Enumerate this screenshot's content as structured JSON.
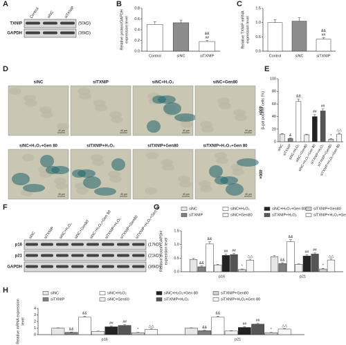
{
  "chart_data": [
    {
      "type": "bar",
      "panel": "B",
      "ylabel": [
        "Relative protein/GAPDH",
        "expression level"
      ],
      "categories": [
        "Control",
        "siNC",
        "siTXNIP"
      ],
      "values": [
        0.5,
        0.53,
        0.18
      ],
      "errors": [
        0.05,
        0.05,
        0.02
      ],
      "annotations": [
        null,
        null,
        [
          "&&",
          "##"
        ]
      ],
      "colors": [
        "#ffffff",
        "#8c8c8c",
        "#ffffff"
      ],
      "ylim": [
        0,
        0.8
      ],
      "yticks": [
        {
          "value": 0,
          "label": "0.0"
        },
        {
          "value": 0.2,
          "label": "0.2"
        },
        {
          "value": 0.4,
          "label": "0.4"
        },
        {
          "value": 0.6,
          "label": "0.6"
        },
        {
          "value": 0.8,
          "label": "0.8"
        }
      ]
    },
    {
      "type": "bar",
      "panel": "C",
      "ylabel": [
        "Relative TXNIP mRNA",
        "expression level"
      ],
      "categories": [
        "Control",
        "siNC",
        "siTXNIP"
      ],
      "values": [
        1.0,
        1.05,
        0.42
      ],
      "errors": [
        0.1,
        0.12,
        0.05
      ],
      "annotations": [
        null,
        null,
        [
          "&&",
          "##"
        ]
      ],
      "colors": [
        "#ffffff",
        "#8c8c8c",
        "#ffffff"
      ],
      "ylim": [
        0,
        1.5
      ],
      "yticks": [
        {
          "value": 0,
          "label": "0.0"
        },
        {
          "value": 0.5,
          "label": "0.5"
        },
        {
          "value": 1,
          "label": "1.0"
        },
        {
          "value": 1.5,
          "label": "1.5"
        }
      ]
    },
    {
      "type": "bar",
      "panel": "E",
      "ylabel": [
        "β-gal positive cells (%)"
      ],
      "categories": [
        "siNC",
        "siTXNIP",
        "siNC+H₂O₂",
        "siNC+Gen80",
        "siNC+H₂O₂+Gen 80",
        "siTXNIP+H₂O₂",
        "siTXNIP+Gen80",
        "siTXNIP+H₂O₂+Gen 80"
      ],
      "values": [
        12,
        5,
        64,
        11,
        40,
        49,
        4,
        12
      ],
      "errors": [
        1,
        1,
        4,
        1,
        3,
        3,
        1,
        2
      ],
      "annotations": [
        null,
        [
          "&"
        ],
        [
          "&&"
        ],
        null,
        [
          "##"
        ],
        [
          "##"
        ],
        [
          "*"
        ],
        [
          "△△"
        ]
      ],
      "colors": [
        "#e6e6e6",
        "#7f7f7f",
        "#ffffff",
        "#f0f0f0",
        "#222222",
        "#555555",
        "#d0d0d0",
        "#f7f7f7"
      ],
      "ylim": [
        0,
        100
      ],
      "yticks": [
        0,
        20,
        40,
        60,
        80,
        100
      ]
    },
    {
      "type": "grouped-bar",
      "panel": "G",
      "ylabel": [
        "Relative protein/GAPDH",
        "expression level"
      ],
      "categories": [
        "p16",
        "p21"
      ],
      "ylim": [
        0,
        1.5
      ],
      "yticks": [
        {
          "value": 0,
          "label": "0.0"
        },
        {
          "value": 0.5,
          "label": "0.5"
        },
        {
          "value": 1,
          "label": "1.0"
        },
        {
          "value": 1.5,
          "label": "1.5"
        }
      ],
      "series": [
        {
          "name": "siNC",
          "color": "#e6e6e6",
          "values": [
            0.45,
            0.55
          ],
          "errors": [
            0.04,
            0.04
          ],
          "annotations": [
            null,
            null
          ]
        },
        {
          "name": "siTXNIP",
          "color": "#7f7f7f",
          "values": [
            0.18,
            0.3
          ],
          "errors": [
            0.03,
            0.03
          ],
          "annotations": [
            "&&",
            "&&"
          ]
        },
        {
          "name": "siNC+H₂O₂",
          "color": "#ffffff",
          "values": [
            1.02,
            1.1
          ],
          "errors": [
            0.08,
            0.08
          ],
          "annotations": [
            "&&",
            "&&"
          ]
        },
        {
          "name": "siNC+Gen80",
          "color": "#f0f0f0",
          "values": [
            0.25,
            0.27
          ],
          "errors": [
            0.02,
            0.02
          ],
          "annotations": [
            null,
            null
          ]
        },
        {
          "name": "siNC+H₂O₂+Gen 80",
          "color": "#222222",
          "values": [
            0.6,
            0.58
          ],
          "errors": [
            0.04,
            0.04
          ],
          "annotations": [
            "##",
            "##"
          ]
        },
        {
          "name": "siTXNIP+H₂O₂",
          "color": "#555555",
          "values": [
            0.63,
            0.65
          ],
          "errors": [
            0.04,
            0.04
          ],
          "annotations": [
            "##",
            "##"
          ]
        },
        {
          "name": "siTXNIP+Gen80",
          "color": "#d0d0d0",
          "values": [
            0.08,
            0.1
          ],
          "errors": [
            0.02,
            0.02
          ],
          "annotations": [
            "*",
            "*"
          ]
        },
        {
          "name": "siTXNIP+H₂O₂+Gen 80",
          "color": "#f7f7f7",
          "values": [
            0.42,
            0.43
          ],
          "errors": [
            0.04,
            0.04
          ],
          "annotations": [
            "△△",
            "△△"
          ]
        }
      ]
    },
    {
      "type": "grouped-bar",
      "panel": "H",
      "ylabel": [
        "Relative mRNA expression",
        "level"
      ],
      "categories": [
        "p16",
        "p21"
      ],
      "ylim": [
        0,
        4
      ],
      "yticks": [
        0,
        1,
        2,
        3,
        4
      ],
      "series": [
        {
          "name": "siNC",
          "color": "#e6e6e6",
          "values": [
            1.0,
            1.0
          ],
          "errors": [
            0.05,
            0.05
          ],
          "annotations": [
            null,
            null
          ]
        },
        {
          "name": "siTXNIP",
          "color": "#7f7f7f",
          "values": [
            0.35,
            0.6
          ],
          "errors": [
            0.05,
            0.06
          ],
          "annotations": [
            "&&",
            "&&"
          ]
        },
        {
          "name": "siNC+H₂O₂",
          "color": "#ffffff",
          "values": [
            2.65,
            2.65
          ],
          "errors": [
            0.15,
            0.15
          ],
          "annotations": [
            "&&",
            "&&"
          ]
        },
        {
          "name": "siNC+Gen60",
          "color": "#f0f0f0",
          "values": [
            0.5,
            0.55
          ],
          "errors": [
            0.04,
            0.04
          ],
          "annotations": [
            null,
            null
          ]
        },
        {
          "name": "siNC+H₂O₂+Gen 80",
          "color": "#222222",
          "values": [
            1.2,
            1.1
          ],
          "errors": [
            0.1,
            0.1
          ],
          "annotations": [
            "##",
            "##"
          ]
        },
        {
          "name": "siTXNIP+H₂O₂",
          "color": "#555555",
          "values": [
            1.4,
            1.6
          ],
          "errors": [
            0.1,
            0.1
          ],
          "annotations": [
            "##",
            "##"
          ]
        },
        {
          "name": "siTXNIP+Gen80",
          "color": "#d0d0d0",
          "values": [
            0.3,
            0.3
          ],
          "errors": [
            0.04,
            0.04
          ],
          "annotations": [
            "*",
            "*"
          ]
        },
        {
          "name": "siTXNIP+H₂O₂+Gen 80",
          "color": "#f7f7f7",
          "values": [
            0.8,
            0.85
          ],
          "errors": [
            0.08,
            0.08
          ],
          "annotations": [
            "△△",
            "△△"
          ]
        }
      ]
    }
  ],
  "blots": [
    {
      "panel": "A",
      "lanes": [
        "Control",
        "siNC",
        "siTXNIP"
      ],
      "bands": [
        {
          "name": "TXNIP",
          "size": "(50kD)"
        },
        {
          "name": "GAPDH",
          "size": "(36kD)"
        }
      ]
    },
    {
      "panel": "F",
      "lanes": [
        "siNC",
        "siTXNIP",
        "siNC+H₂O₂",
        "siNC+Gen80",
        "siNC+H₂O₂+Gen 80",
        "siTXNIP+H₂O₂",
        "siTXNIP+Gen80",
        "siTXNIP+H₂O₂+Gen 80"
      ],
      "bands": [
        {
          "name": "p16",
          "size": "(17kD)"
        },
        {
          "name": "p21",
          "size": "(21kD)"
        },
        {
          "name": "GAPDH",
          "size": "(36kD)"
        }
      ]
    }
  ],
  "micrographs": {
    "panel": "D",
    "labels": [
      "siNC",
      "siTXNIP",
      "siNC+H₂O₂",
      "siNC+Gen80",
      "siNC+H₂O₂+Gen 80",
      "siTXNIP+H₂O₂",
      "siTXNIP+Gen80",
      "siTXNIP+H₂O₂+Gen 80"
    ],
    "magnification": [
      "400×",
      "400×"
    ],
    "scale": "40 μm"
  }
}
